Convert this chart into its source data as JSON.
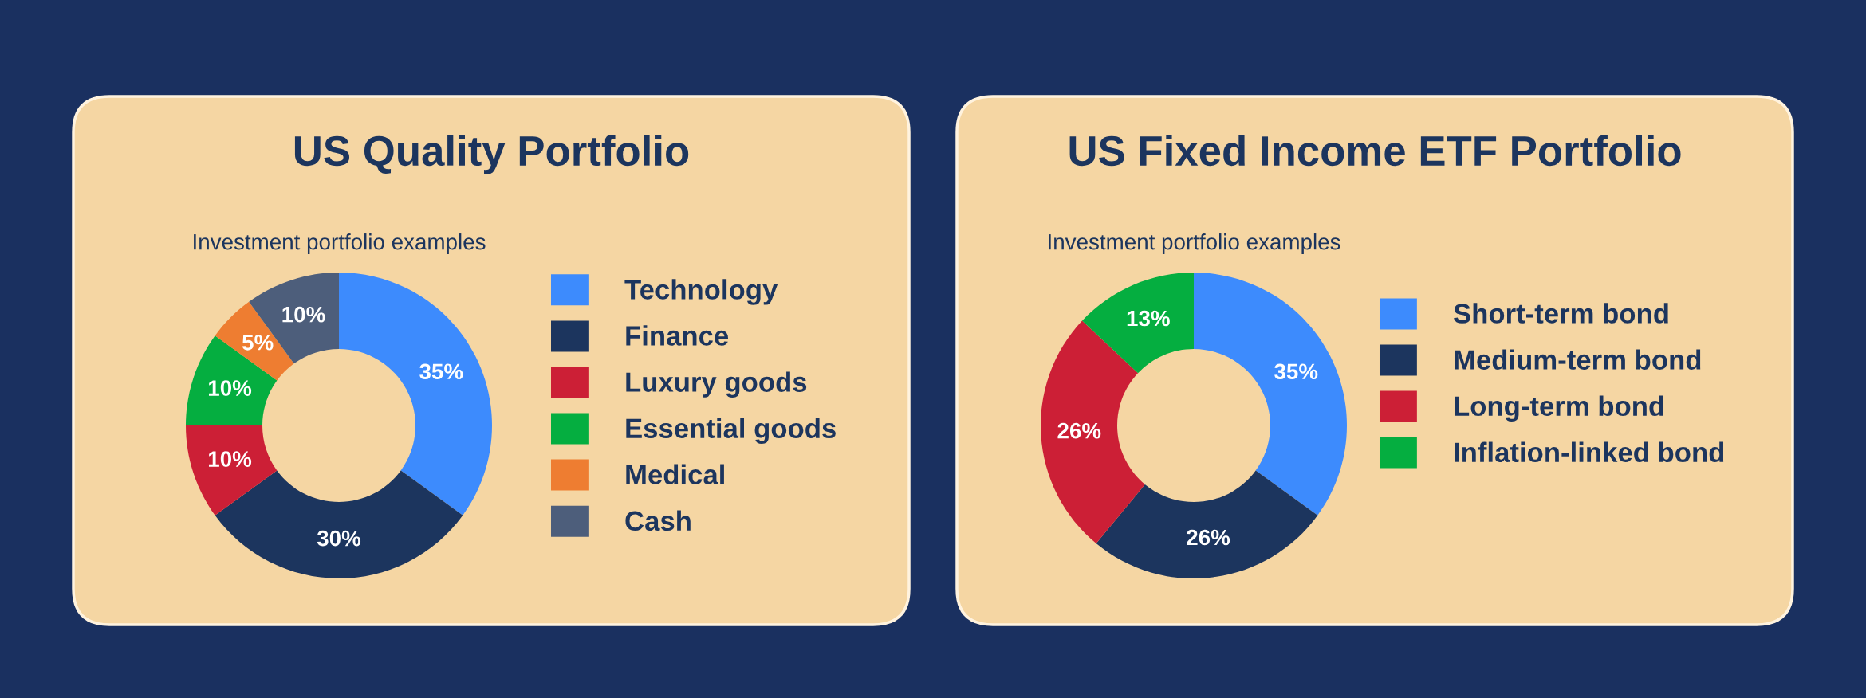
{
  "chart_data": [
    {
      "type": "donut",
      "title": "US Quality Portfolio",
      "subtitle": "Investment portfolio examples",
      "categories": [
        "Technology",
        "Finance",
        "Luxury goods",
        "Essential goods",
        "Medical",
        "Cash"
      ],
      "values": [
        35,
        30,
        10,
        10,
        5,
        10
      ],
      "colors": [
        "#3d8bfd",
        "#1c355e",
        "#cc1f36",
        "#05ae40",
        "#ee7d31",
        "#4d5e7b"
      ],
      "value_labels": [
        "35%",
        "30%",
        "10%",
        "10%",
        "5%",
        "10%"
      ],
      "legend": "right"
    },
    {
      "type": "donut",
      "title": "US Fixed Income ETF Portfolio",
      "subtitle": "Investment portfolio examples",
      "categories": [
        "Short-term bond",
        "Medium-term bond",
        "Long-term bond",
        "Inflation-linked bond"
      ],
      "values": [
        35,
        26,
        26,
        13
      ],
      "colors": [
        "#3d8bfd",
        "#1c355e",
        "#cc1f36",
        "#05ae40"
      ],
      "value_labels": [
        "35%",
        "26%",
        "26%",
        "13%"
      ],
      "legend": "right"
    }
  ]
}
